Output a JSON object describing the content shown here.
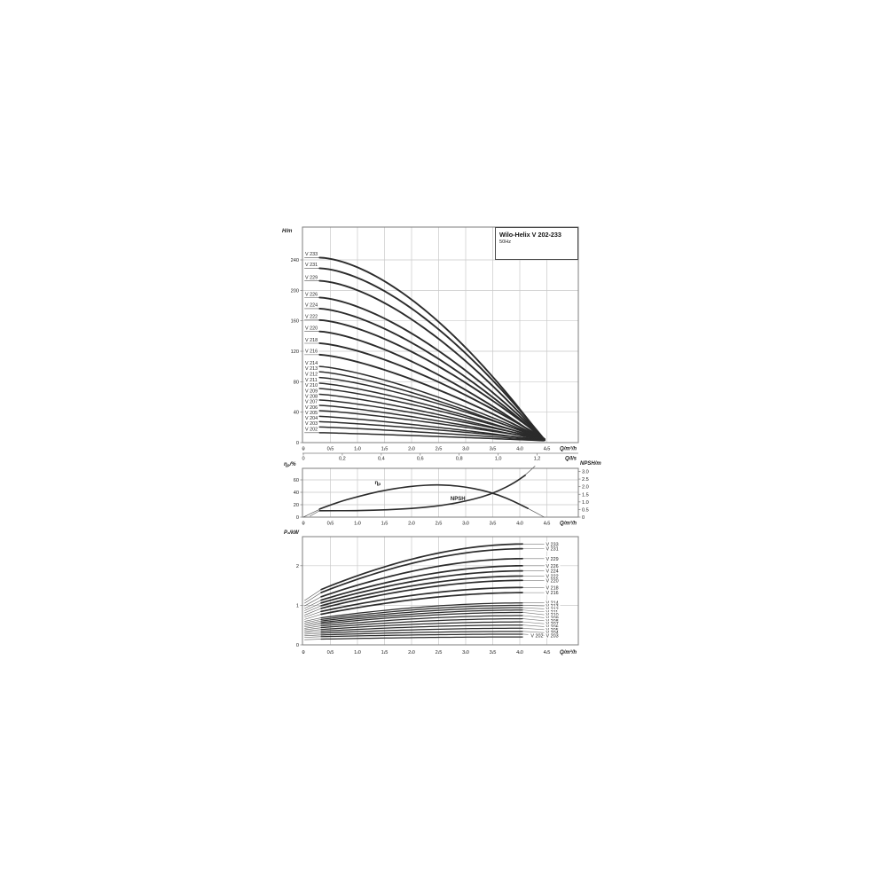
{
  "title_box": {
    "title": "Wilo-Helix V 202-233",
    "subtitle": "50Hz"
  },
  "chart_data": [
    {
      "type": "line",
      "name": "head-flow-curves",
      "title": "Wilo-Helix V 202-233",
      "subtitle": "50Hz",
      "ylabel": "H/m",
      "xlabel": "Q/m³/h",
      "xlabel_secondary": "Q/l/s",
      "grid": true,
      "xlim": [
        0,
        5.08
      ],
      "ylim": [
        0,
        283
      ],
      "x_tick_values": [
        0,
        0.5,
        1.0,
        1.5,
        2.0,
        2.5,
        3.0,
        3.5,
        4.0,
        4.5
      ],
      "x_tick_labels": [
        "0",
        "0.5",
        "1.0",
        "1.5",
        "2.0",
        "2.5",
        "3.0",
        "3.5",
        "4.0",
        "4.5"
      ],
      "x2_tick_values": [
        0,
        0.2,
        0.4,
        0.6,
        0.8,
        1.0,
        1.2
      ],
      "x2_tick_labels": [
        "0",
        "0,2",
        "0,4",
        "0,6",
        "0,8",
        "1,0",
        "1,2"
      ],
      "y_tick_values": [
        0,
        40,
        80,
        120,
        160,
        200,
        240
      ],
      "y_tick_labels": [
        "0",
        "40",
        "80",
        "120",
        "160",
        "200",
        "240"
      ],
      "series": [
        {
          "label": "V 233",
          "shutoff_head_m": 243.0,
          "q_start": 0.3,
          "q_end": 4.44,
          "h_end": 3.5
        },
        {
          "label": "V 231",
          "shutoff_head_m": 229.0,
          "q_start": 0.3,
          "q_end": 4.45,
          "h_end": 4.5
        },
        {
          "label": "V 229",
          "shutoff_head_m": 212.5,
          "q_start": 0.3,
          "q_end": 4.46,
          "h_end": 3.0
        },
        {
          "label": "V 226",
          "shutoff_head_m": 190.5,
          "q_start": 0.3,
          "q_end": 4.44,
          "h_end": 5.0
        },
        {
          "label": "V 224",
          "shutoff_head_m": 176.0,
          "q_start": 0.3,
          "q_end": 4.45,
          "h_end": 3.5
        },
        {
          "label": "V 222",
          "shutoff_head_m": 161.0,
          "q_start": 0.3,
          "q_end": 4.46,
          "h_end": 4.5
        },
        {
          "label": "V 220",
          "shutoff_head_m": 146.0,
          "q_start": 0.3,
          "q_end": 4.44,
          "h_end": 3.0
        },
        {
          "label": "V 218",
          "shutoff_head_m": 130.5,
          "q_start": 0.3,
          "q_end": 4.45,
          "h_end": 5.0
        },
        {
          "label": "V 216",
          "shutoff_head_m": 115.5,
          "q_start": 0.3,
          "q_end": 4.46,
          "h_end": 3.5
        },
        {
          "label": "V 214",
          "shutoff_head_m": 100.0,
          "q_start": 0.3,
          "q_end": 4.44,
          "h_end": 4.5
        },
        {
          "label": "V 213",
          "shutoff_head_m": 93.0,
          "q_start": 0.3,
          "q_end": 4.45,
          "h_end": 3.0
        },
        {
          "label": "V 212",
          "shutoff_head_m": 85.5,
          "q_start": 0.3,
          "q_end": 4.46,
          "h_end": 5.0
        },
        {
          "label": "V 211",
          "shutoff_head_m": 78.0,
          "q_start": 0.3,
          "q_end": 4.44,
          "h_end": 3.5
        },
        {
          "label": "V 210",
          "shutoff_head_m": 71.0,
          "q_start": 0.3,
          "q_end": 4.45,
          "h_end": 4.5
        },
        {
          "label": "V 209",
          "shutoff_head_m": 63.5,
          "q_start": 0.3,
          "q_end": 4.46,
          "h_end": 3.0
        },
        {
          "label": "V 208",
          "shutoff_head_m": 56.0,
          "q_start": 0.3,
          "q_end": 4.44,
          "h_end": 5.0
        },
        {
          "label": "V 207",
          "shutoff_head_m": 49.0,
          "q_start": 0.3,
          "q_end": 4.45,
          "h_end": 3.5
        },
        {
          "label": "V 206",
          "shutoff_head_m": 42.0,
          "q_start": 0.3,
          "q_end": 4.46,
          "h_end": 4.5
        },
        {
          "label": "V 205",
          "shutoff_head_m": 34.5,
          "q_start": 0.3,
          "q_end": 4.44,
          "h_end": 3.0
        },
        {
          "label": "V 204",
          "shutoff_head_m": 27.5,
          "q_start": 0.3,
          "q_end": 4.45,
          "h_end": 4.0
        },
        {
          "label": "V 203",
          "shutoff_head_m": 20.5,
          "q_start": 0.3,
          "q_end": 4.46,
          "h_end": 3.0
        },
        {
          "label": "V 202",
          "shutoff_head_m": 13.0,
          "q_start": 0.3,
          "q_end": 4.44,
          "h_end": 2.5
        }
      ]
    },
    {
      "type": "line",
      "name": "efficiency-npsh",
      "ylabel_left": "ηp/%",
      "ylabel_right": "NPSH/m",
      "xlabel": "Q/m³/h",
      "grid": true,
      "x_tick_values": [
        0,
        0.5,
        1.0,
        1.5,
        2.0,
        2.5,
        3.0,
        3.5,
        4.0,
        4.5
      ],
      "x_tick_labels": [
        "0",
        "0.5",
        "1.0",
        "1.5",
        "2.0",
        "2.5",
        "3.0",
        "3.5",
        "4.0",
        "4.5"
      ],
      "y_left_tick_values": [
        0,
        20,
        40,
        60
      ],
      "y_left_tick_labels": [
        "0",
        "20",
        "40",
        "60"
      ],
      "y_right_tick_values": [
        0,
        0.5,
        1.0,
        1.5,
        2.0,
        2.5,
        3.0
      ],
      "y_right_tick_labels": [
        "0",
        "0.5",
        "1.0",
        "1.5",
        "2.0",
        "2.5",
        "3.0"
      ],
      "series": [
        {
          "label": "ηp",
          "axis": "left",
          "x": [
            0,
            0.3,
            0.6,
            1.0,
            1.4,
            1.8,
            2.1,
            2.4,
            2.7,
            3.0,
            3.3,
            3.6,
            3.9,
            4.15,
            4.45
          ],
          "y": [
            0,
            13,
            23,
            33,
            41.5,
            47.5,
            50.5,
            52,
            51.5,
            48.5,
            43.5,
            36,
            25,
            14,
            0
          ]
        },
        {
          "label": "NPSH",
          "axis": "right",
          "x": [
            0.3,
            0.8,
            1.3,
            1.8,
            2.2,
            2.6,
            3.0,
            3.3,
            3.6,
            3.9,
            4.1,
            4.28
          ],
          "y": [
            0.42,
            0.42,
            0.45,
            0.52,
            0.62,
            0.78,
            1.05,
            1.32,
            1.7,
            2.25,
            2.75,
            3.35
          ]
        }
      ]
    },
    {
      "type": "line",
      "name": "power-curves",
      "ylabel": "P₂/kW",
      "xlabel": "Q/m³/h",
      "grid": true,
      "x_tick_values": [
        0,
        0.5,
        1.0,
        1.5,
        2.0,
        2.5,
        3.0,
        3.5,
        4.0,
        4.5
      ],
      "x_tick_labels": [
        "0",
        "0.5",
        "1.0",
        "1.5",
        "2.0",
        "2.5",
        "3.0",
        "3.5",
        "4.0",
        "4.5"
      ],
      "y_tick_values": [
        0,
        1,
        2
      ],
      "y_tick_labels": [
        "0",
        "1",
        "2"
      ],
      "series": [
        {
          "label": "V 233",
          "p_start_kw": 1.2,
          "p_end_kw": 2.55
        },
        {
          "label": "V 231",
          "p_start_kw": 1.13,
          "p_end_kw": 2.43
        },
        {
          "label": "V 229",
          "p_start_kw": 1.05,
          "p_end_kw": 2.18
        },
        {
          "label": "V 226",
          "p_start_kw": 0.98,
          "p_end_kw": 2.0
        },
        {
          "label": "V 224",
          "p_start_kw": 0.92,
          "p_end_kw": 1.87
        },
        {
          "label": "V 222",
          "p_start_kw": 0.86,
          "p_end_kw": 1.74
        },
        {
          "label": "V 220",
          "p_start_kw": 0.8,
          "p_end_kw": 1.63
        },
        {
          "label": "V 218",
          "p_start_kw": 0.74,
          "p_end_kw": 1.45
        },
        {
          "label": "V 216",
          "p_start_kw": 0.68,
          "p_end_kw": 1.32
        },
        {
          "label": "V 214",
          "p_start_kw": 0.62,
          "p_end_kw": 1.06
        },
        {
          "label": "V 213",
          "p_start_kw": 0.58,
          "p_end_kw": 1.0
        },
        {
          "label": "V 212",
          "p_start_kw": 0.545,
          "p_end_kw": 0.94
        },
        {
          "label": "V 211",
          "p_start_kw": 0.51,
          "p_end_kw": 0.88
        },
        {
          "label": "V 210",
          "p_start_kw": 0.475,
          "p_end_kw": 0.82
        },
        {
          "label": "V 209",
          "p_start_kw": 0.435,
          "p_end_kw": 0.74
        },
        {
          "label": "V 208",
          "p_start_kw": 0.395,
          "p_end_kw": 0.66
        },
        {
          "label": "V 207",
          "p_start_kw": 0.355,
          "p_end_kw": 0.58
        },
        {
          "label": "V 206",
          "p_start_kw": 0.315,
          "p_end_kw": 0.5
        },
        {
          "label": "V 205",
          "p_start_kw": 0.275,
          "p_end_kw": 0.42
        },
        {
          "label": "V 204",
          "p_start_kw": 0.235,
          "p_end_kw": 0.34
        },
        {
          "label": "V 203",
          "p_start_kw": 0.195,
          "p_end_kw": 0.27
        },
        {
          "label": "V 202",
          "p_start_kw": 0.135,
          "p_end_kw": 0.2
        }
      ]
    }
  ]
}
